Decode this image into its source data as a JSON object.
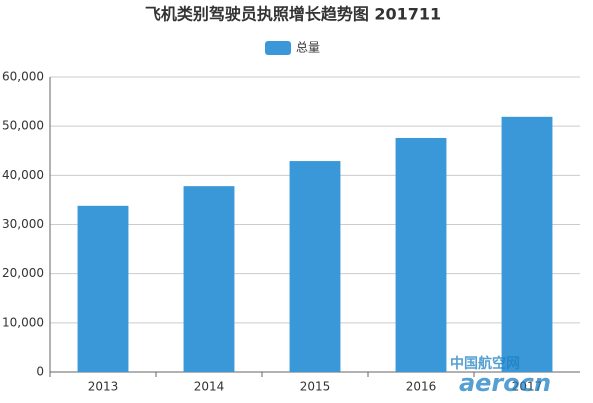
{
  "chart_data": {
    "type": "bar",
    "title": "飞机类别驾驶员执照增长趋势图 201711",
    "categories": [
      "2013",
      "2014",
      "2015",
      "2016",
      "2017"
    ],
    "series": [
      {
        "name": "总量",
        "color": "#3a98d8",
        "values": [
          33800,
          37800,
          42900,
          47600,
          51900
        ]
      }
    ],
    "ylim": [
      0,
      60000
    ],
    "yticks": [
      0,
      {
        "value": 10000,
        "label": "10,000"
      },
      {
        "value": 20000,
        "label": "20,000"
      },
      {
        "value": 30000,
        "label": "30,000"
      },
      {
        "value": 40000,
        "label": "40,000"
      },
      {
        "value": 50000,
        "label": "50,000"
      },
      {
        "value": 60000,
        "label": "60,000"
      }
    ],
    "grid": true,
    "legend": "top",
    "watermark": [
      "中国航空网",
      "aerocn"
    ]
  }
}
